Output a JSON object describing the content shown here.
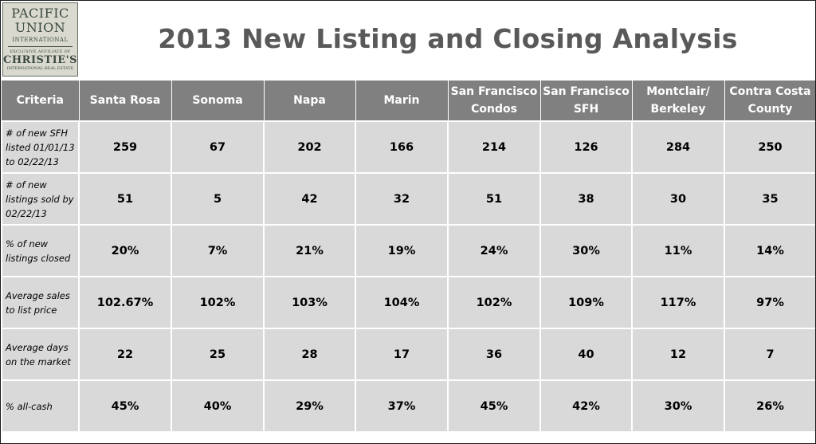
{
  "logo": {
    "line1": "PACIFIC",
    "line2": "UNION",
    "line3": "INTERNATIONAL",
    "line4": "EXCLUSIVE AFFILIATE OF",
    "line5": "CHRISTIE'S",
    "line6": "INTERNATIONAL REAL ESTATE"
  },
  "title": "2013 New Listing and Closing Analysis",
  "table": {
    "headers": [
      "Criteria",
      "Santa Rosa",
      "Sonoma",
      "Napa",
      "Marin",
      "San Francisco Condos",
      "San Francisco SFH",
      "Montclair/ Berkeley",
      "Contra Costa County"
    ],
    "rows": [
      {
        "criteria": "# of new SFH listed 01/01/13 to 02/22/13",
        "values": [
          "259",
          "67",
          "202",
          "166",
          "214",
          "126",
          "284",
          "250"
        ]
      },
      {
        "criteria": "# of new listings sold by 02/22/13",
        "values": [
          "51",
          "5",
          "42",
          "32",
          "51",
          "38",
          "30",
          "35"
        ]
      },
      {
        "criteria": "% of new listings closed",
        "values": [
          "20%",
          "7%",
          "21%",
          "19%",
          "24%",
          "30%",
          "11%",
          "14%"
        ]
      },
      {
        "criteria": "Average sales to list price",
        "values": [
          "102.67%",
          "102%",
          "103%",
          "104%",
          "102%",
          "109%",
          "117%",
          "97%"
        ]
      },
      {
        "criteria": "Average days on the market",
        "values": [
          "22",
          "25",
          "28",
          "17",
          "36",
          "40",
          "12",
          "7"
        ]
      },
      {
        "criteria": "% all-cash",
        "values": [
          "45%",
          "40%",
          "29%",
          "37%",
          "45%",
          "42%",
          "30%",
          "26%"
        ]
      }
    ]
  }
}
